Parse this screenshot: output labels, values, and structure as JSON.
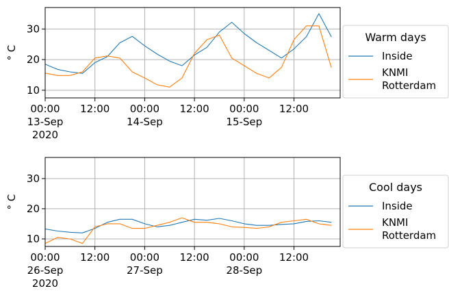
{
  "chart_data": [
    {
      "type": "line",
      "title": "",
      "ylabel": "° C",
      "xlabel": "",
      "ylim": [
        7.5,
        37.0
      ],
      "y_ticks": [
        10,
        20,
        30
      ],
      "x_ticks": [
        {
          "label": "00:00\n13-Sep\n2020"
        },
        {
          "label": "12:00"
        },
        {
          "label": "00:00\n14-Sep"
        },
        {
          "label": "12:00"
        },
        {
          "label": "00:00\n15-Sep"
        },
        {
          "label": "12:00"
        }
      ],
      "x": [
        "2020-09-13 00:00",
        "2020-09-13 03:00",
        "2020-09-13 06:00",
        "2020-09-13 09:00",
        "2020-09-13 12:00",
        "2020-09-13 15:00",
        "2020-09-13 18:00",
        "2020-09-13 21:00",
        "2020-09-14 00:00",
        "2020-09-14 03:00",
        "2020-09-14 06:00",
        "2020-09-14 09:00",
        "2020-09-14 12:00",
        "2020-09-14 15:00",
        "2020-09-14 18:00",
        "2020-09-14 21:00",
        "2020-09-15 00:00",
        "2020-09-15 03:00",
        "2020-09-15 06:00",
        "2020-09-15 09:00",
        "2020-09-15 12:00",
        "2020-09-15 15:00",
        "2020-09-15 18:00",
        "2020-09-15 21:00"
      ],
      "grid": true,
      "legend": {
        "title": "Warm days",
        "placement": "right"
      },
      "series": [
        {
          "name": "Inside",
          "color": "#1f77b4",
          "values": [
            18.5,
            16.8,
            16.0,
            15.5,
            19.0,
            21.0,
            25.5,
            27.6,
            24.5,
            21.8,
            19.5,
            18.0,
            21.5,
            24.0,
            29.0,
            32.2,
            28.5,
            25.5,
            23.0,
            20.5,
            23.5,
            27.5,
            35.0,
            27.5
          ]
        },
        {
          "name": "KNMI\nRotterdam",
          "color": "#ff7f0e",
          "values": [
            15.6,
            14.8,
            14.8,
            16.0,
            20.5,
            21.2,
            20.5,
            16.0,
            14.0,
            11.8,
            11.0,
            14.0,
            22.0,
            26.5,
            28.0,
            20.5,
            18.0,
            15.5,
            14.0,
            17.5,
            26.5,
            31.0,
            31.0,
            17.5
          ]
        }
      ]
    },
    {
      "type": "line",
      "title": "",
      "ylabel": "° C",
      "xlabel": "",
      "ylim": [
        7.5,
        37.0
      ],
      "y_ticks": [
        10,
        20,
        30
      ],
      "x_ticks": [
        {
          "label": "00:00\n26-Sep\n2020"
        },
        {
          "label": "12:00"
        },
        {
          "label": "00:00\n27-Sep"
        },
        {
          "label": "12:00"
        },
        {
          "label": "00:00\n28-Sep"
        },
        {
          "label": "12:00"
        }
      ],
      "x": [
        "2020-09-26 00:00",
        "2020-09-26 03:00",
        "2020-09-26 06:00",
        "2020-09-26 09:00",
        "2020-09-26 12:00",
        "2020-09-26 15:00",
        "2020-09-26 18:00",
        "2020-09-26 21:00",
        "2020-09-27 00:00",
        "2020-09-27 03:00",
        "2020-09-27 06:00",
        "2020-09-27 09:00",
        "2020-09-27 12:00",
        "2020-09-27 15:00",
        "2020-09-27 18:00",
        "2020-09-27 21:00",
        "2020-09-28 00:00",
        "2020-09-28 03:00",
        "2020-09-28 06:00",
        "2020-09-28 09:00",
        "2020-09-28 12:00",
        "2020-09-28 15:00",
        "2020-09-28 18:00",
        "2020-09-28 21:00"
      ],
      "grid": true,
      "legend": {
        "title": "Cool days",
        "placement": "right"
      },
      "series": [
        {
          "name": "Inside",
          "color": "#1f77b4",
          "values": [
            13.3,
            12.6,
            12.2,
            12.0,
            13.5,
            15.5,
            16.5,
            16.5,
            15.0,
            14.0,
            14.5,
            15.5,
            16.5,
            16.2,
            16.8,
            16.0,
            15.0,
            14.5,
            14.5,
            14.8,
            15.0,
            15.8,
            16.0,
            15.5
          ]
        },
        {
          "name": "KNMI\nRotterdam",
          "color": "#ff7f0e",
          "values": [
            8.5,
            10.5,
            10.0,
            8.5,
            14.0,
            15.0,
            15.0,
            13.5,
            13.5,
            14.5,
            15.5,
            17.0,
            15.5,
            15.5,
            15.0,
            14.0,
            13.8,
            13.5,
            14.0,
            15.5,
            16.0,
            16.5,
            15.0,
            14.5
          ]
        }
      ]
    }
  ]
}
